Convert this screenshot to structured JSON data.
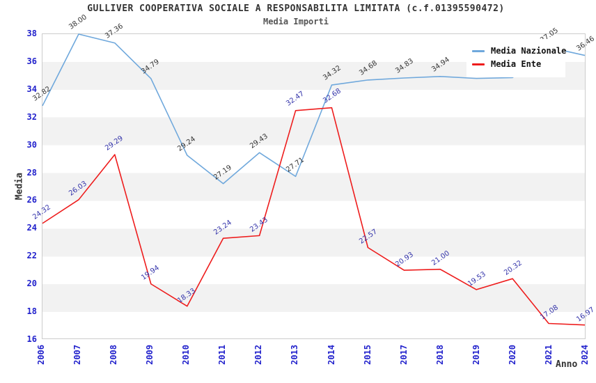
{
  "title": "GULLIVER COOPERATIVA SOCIALE A RESPONSABILITA LIMITATA (c.f.01395590472)",
  "subtitle": "Media Importi",
  "x_axis_title": "Anno",
  "y_axis_title": "Media",
  "legend": {
    "position": "top-right",
    "items": [
      {
        "label": "Media Nazionale",
        "color": "#6FA8DC"
      },
      {
        "label": "Media Ente",
        "color": "#EE1C1C"
      }
    ]
  },
  "colors": {
    "tick_label": "#2222cc",
    "band_gray": "#f2f2f2",
    "plot_border": "#cccccc",
    "nazionale_line": "#6FA8DC",
    "nazionale_label": "#333333",
    "ente_line": "#EE1C1C",
    "ente_label": "#3333aa"
  },
  "chart_data": {
    "type": "line",
    "x": [
      "2006",
      "2007",
      "2008",
      "2009",
      "2010",
      "2011",
      "2012",
      "2013",
      "2014",
      "2015",
      "2017",
      "2018",
      "2019",
      "2020",
      "2021",
      "2024"
    ],
    "series": [
      {
        "name": "Media Nazionale",
        "color": "#6FA8DC",
        "label_color": "#333333",
        "values": [
          32.82,
          38.0,
          37.36,
          34.79,
          29.24,
          27.19,
          29.43,
          27.71,
          34.32,
          34.68,
          34.83,
          34.94,
          34.8,
          34.86,
          37.05,
          36.46
        ],
        "labels_hidden_by_legend": [
          "2019",
          "2020"
        ]
      },
      {
        "name": "Media Ente",
        "color": "#EE1C1C",
        "label_color": "#3333aa",
        "values": [
          24.32,
          26.03,
          29.29,
          19.94,
          18.33,
          23.24,
          23.43,
          32.47,
          32.68,
          22.57,
          20.93,
          21.0,
          19.53,
          20.32,
          17.08,
          16.97
        ]
      }
    ],
    "ylim": [
      16,
      38
    ],
    "ytick_step": 2,
    "grid": "alternating horizontal bands, gray between even values 36-34, 32-30, 28-26, 24-22, 20-18",
    "legend_position": "top-right inside plot",
    "point_label_format": "2 decimals, rotated -35deg above each point"
  }
}
